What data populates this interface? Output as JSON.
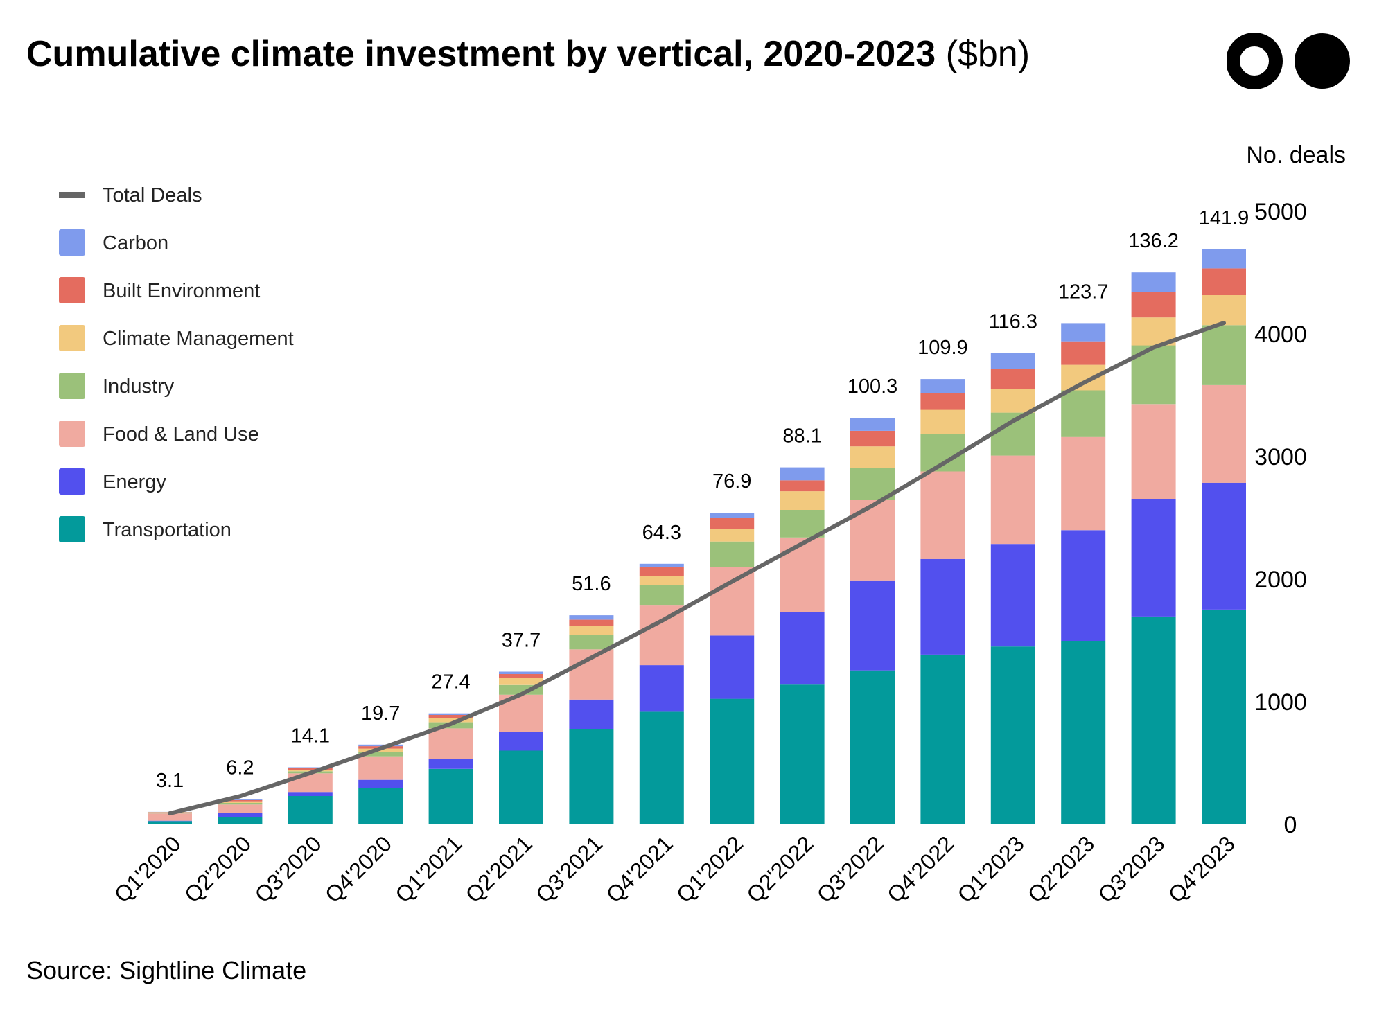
{
  "header": {
    "title_bold": "Cumulative climate investment by vertical, 2020-2023",
    "title_unit": "($bn)"
  },
  "footer": {
    "source": "Source: Sightline Climate"
  },
  "logo": {
    "icon": "two-circles-logo-icon"
  },
  "chart_data": {
    "type": "bar",
    "stacked": true,
    "title": "Cumulative climate investment by vertical, 2020-2023 ($bn)",
    "categories": [
      "Q1'2020",
      "Q2'2020",
      "Q3'2020",
      "Q4'2020",
      "Q1'2021",
      "Q2'2021",
      "Q3'2021",
      "Q4'2021",
      "Q1'2022",
      "Q2'2022",
      "Q3'2022",
      "Q4'2022",
      "Q1'2023",
      "Q2'2023",
      "Q3'2023",
      "Q4'2023"
    ],
    "totals": [
      3.1,
      6.2,
      14.1,
      19.7,
      27.4,
      37.7,
      51.6,
      64.3,
      76.9,
      88.1,
      100.3,
      109.9,
      116.3,
      123.7,
      136.2,
      141.9
    ],
    "y2label": "No. deals",
    "y2lim": [
      0,
      5000
    ],
    "y2ticks": [
      0,
      1000,
      2000,
      3000,
      4000,
      5000
    ],
    "series": [
      {
        "name": "Transportation",
        "color": "#039A9B",
        "values": [
          0.8,
          1.8,
          7.0,
          8.9,
          13.7,
          18.2,
          23.5,
          27.8,
          31.0,
          34.5,
          38.0,
          41.9,
          43.9,
          45.3,
          51.3,
          53.0
        ]
      },
      {
        "name": "Energy",
        "color": "#5250EE",
        "values": [
          0.1,
          1.1,
          1.0,
          2.1,
          2.5,
          4.6,
          7.3,
          11.5,
          15.6,
          17.9,
          22.2,
          23.6,
          25.3,
          27.3,
          28.9,
          31.3
        ]
      },
      {
        "name": "Food & Land Use",
        "color": "#F0AAA0",
        "values": [
          1.8,
          2.0,
          4.6,
          5.8,
          7.5,
          9.2,
          12.4,
          14.7,
          16.9,
          18.4,
          19.8,
          21.6,
          21.8,
          23.0,
          23.5,
          24.1
        ]
      },
      {
        "name": "Industry",
        "color": "#9BC17A",
        "values": [
          0.2,
          0.4,
          0.5,
          1.1,
          1.5,
          2.4,
          3.6,
          5.1,
          6.3,
          6.8,
          8.0,
          9.3,
          10.6,
          11.5,
          14.5,
          14.8
        ]
      },
      {
        "name": "Climate Management",
        "color": "#F2C97E",
        "values": [
          0.1,
          0.4,
          0.4,
          0.8,
          1.1,
          1.7,
          2.1,
          2.2,
          3.2,
          4.6,
          5.3,
          5.9,
          5.9,
          6.3,
          6.9,
          7.4
        ]
      },
      {
        "name": "Built Environment",
        "color": "#E46C5F",
        "values": [
          0.05,
          0.3,
          0.4,
          0.6,
          0.7,
          1.0,
          1.6,
          2.2,
          2.7,
          2.7,
          3.8,
          4.2,
          4.8,
          5.8,
          6.3,
          6.6
        ]
      },
      {
        "name": "Carbon",
        "color": "#7F9BED",
        "values": [
          0.05,
          0.2,
          0.2,
          0.4,
          0.4,
          0.6,
          1.1,
          0.8,
          1.2,
          3.2,
          3.2,
          3.4,
          4.0,
          4.5,
          4.8,
          4.7
        ]
      }
    ],
    "line": {
      "name": "Total Deals",
      "color": "#666666",
      "values": [
        90,
        230,
        420,
        620,
        820,
        1060,
        1360,
        1660,
        1980,
        2290,
        2600,
        2940,
        3290,
        3600,
        3890,
        4090
      ]
    },
    "legend": {
      "placement": "left"
    }
  }
}
